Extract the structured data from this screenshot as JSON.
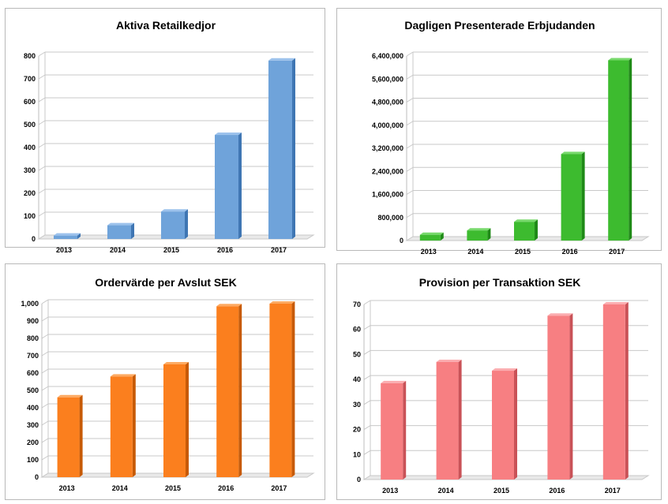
{
  "charts": [
    {
      "chart_data": {
        "type": "bar",
        "title": "Aktiva Retailkedjor",
        "categories": [
          "2013",
          "2014",
          "2015",
          "2016",
          "2017"
        ],
        "values": [
          15,
          60,
          120,
          455,
          780
        ],
        "ylim": [
          0,
          800
        ],
        "yticks": [
          0,
          100,
          200,
          300,
          400,
          500,
          600,
          700,
          800
        ],
        "ytick_labels": [
          "0",
          "100",
          "200",
          "300",
          "400",
          "500",
          "600",
          "700",
          "800"
        ],
        "grid": true,
        "color": "#6fa3da",
        "side_color": "#3f76b3",
        "top_color": "#9cc2ec"
      }
    },
    {
      "chart_data": {
        "type": "bar",
        "title": "Dagligen Presenterade Erbjudanden",
        "categories": [
          "2013",
          "2014",
          "2015",
          "2016",
          "2017"
        ],
        "values": [
          200000,
          350000,
          650000,
          3000000,
          6250000
        ],
        "ylim": [
          0,
          6400000
        ],
        "yticks": [
          0,
          800000,
          1600000,
          2400000,
          3200000,
          4000000,
          4800000,
          5600000,
          6400000
        ],
        "ytick_labels": [
          "0",
          "800,000",
          "1,600,000",
          "2,400,000",
          "3,200,000",
          "4,000,000",
          "4,800,000",
          "5,600,000",
          "6,400,000"
        ],
        "grid": true,
        "color": "#3dbb2f",
        "side_color": "#1f8a17",
        "top_color": "#78d96c"
      }
    },
    {
      "chart_data": {
        "type": "bar",
        "title": "Ordervärde per Avslut SEK",
        "categories": [
          "2013",
          "2014",
          "2015",
          "2016",
          "2017"
        ],
        "values": [
          460,
          580,
          650,
          985,
          1000
        ],
        "ylim": [
          0,
          1000
        ],
        "yticks": [
          0,
          100,
          200,
          300,
          400,
          500,
          600,
          700,
          800,
          900,
          1000
        ],
        "ytick_labels": [
          "0",
          "100",
          "200",
          "300",
          "400",
          "500",
          "600",
          "700",
          "800",
          "900",
          "1,000"
        ],
        "grid": true,
        "color": "#fb7f1e",
        "side_color": "#c75a06",
        "top_color": "#fdaa62"
      }
    },
    {
      "chart_data": {
        "type": "bar",
        "title": "Provision per Transaktion SEK",
        "categories": [
          "2013",
          "2014",
          "2015",
          "2016",
          "2017"
        ],
        "values": [
          38.5,
          47,
          43.5,
          65.5,
          70
        ],
        "ylim": [
          0,
          70
        ],
        "yticks": [
          0,
          10,
          20,
          30,
          40,
          50,
          60,
          70
        ],
        "ytick_labels": [
          "0",
          "10",
          "20",
          "30",
          "40",
          "50",
          "60",
          "70"
        ],
        "grid": true,
        "color": "#f77f82",
        "side_color": "#c95257",
        "top_color": "#fbadb0"
      }
    }
  ]
}
